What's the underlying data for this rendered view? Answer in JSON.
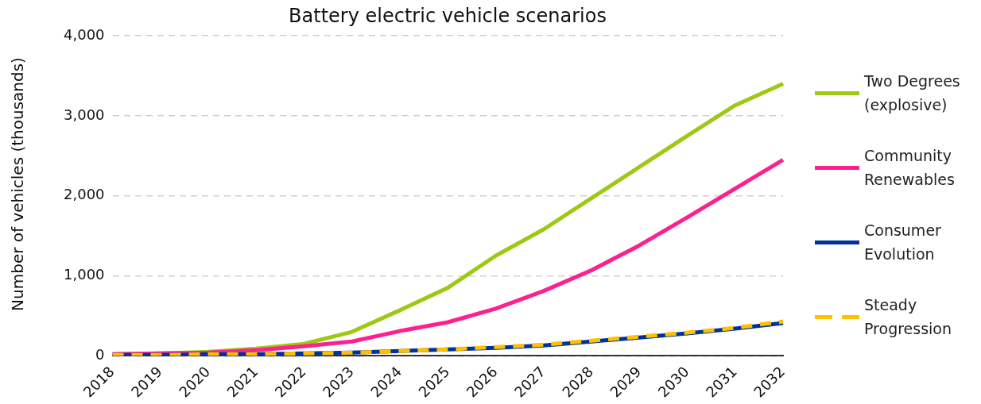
{
  "chart_data": {
    "type": "line",
    "title": "Battery electric vehicle scenarios",
    "ylabel": "Number of vehicles (thousands)",
    "categories": [
      "2018",
      "2019",
      "2020",
      "2021",
      "2022",
      "2023",
      "2024",
      "2025",
      "2026",
      "2027",
      "2028",
      "2029",
      "2030",
      "2031",
      "2032"
    ],
    "series": [
      {
        "name": "Two Degrees (explosive)",
        "color": "#9dc814",
        "values": [
          20,
          30,
          50,
          90,
          150,
          300,
          570,
          850,
          1250,
          1580,
          1970,
          2360,
          2750,
          3130,
          3400
        ]
      },
      {
        "name": "Community Renewables",
        "color": "#ff2090",
        "values": [
          20,
          30,
          40,
          70,
          120,
          180,
          310,
          420,
          590,
          810,
          1070,
          1380,
          1730,
          2090,
          2450
        ]
      },
      {
        "name": "Consumer Evolution",
        "color": "#003399",
        "values": [
          10,
          10,
          20,
          20,
          30,
          40,
          60,
          80,
          100,
          130,
          180,
          230,
          280,
          340,
          410
        ]
      },
      {
        "name": "Steady Progression",
        "color": "#ffc000",
        "line_style": "dashed",
        "values": [
          10,
          10,
          20,
          20,
          30,
          40,
          60,
          80,
          110,
          140,
          190,
          240,
          290,
          350,
          430
        ]
      }
    ],
    "ylim": [
      0,
      4000
    ],
    "yticks": [
      {
        "value": 0,
        "label": "0"
      },
      {
        "value": 1000,
        "label": "1,000"
      },
      {
        "value": 2000,
        "label": "2,000"
      },
      {
        "value": 3000,
        "label": "3,000"
      },
      {
        "value": 4000,
        "label": "4,000"
      }
    ],
    "grid": "y",
    "legend": "right",
    "marker": "none",
    "line_style": "solid"
  }
}
